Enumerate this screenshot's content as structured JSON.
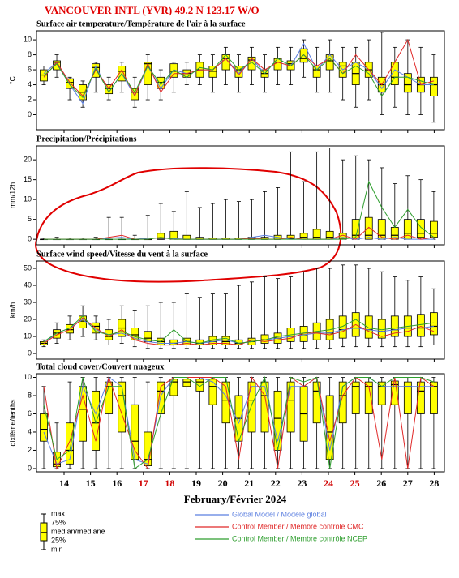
{
  "header": {
    "title": "VANCOUVER INTL (YVR) 49.2 N  123.17 W/O"
  },
  "x_axis": {
    "label": "February/Février 2024",
    "ticks": [
      14,
      15,
      16,
      17,
      18,
      19,
      20,
      21,
      22,
      23,
      24,
      25,
      26,
      27,
      28
    ],
    "tick_colors": [
      "#000",
      "#000",
      "#000",
      "#d00000",
      "#d00000",
      "#000",
      "#000",
      "#000",
      "#000",
      "#000",
      "#d00000",
      "#d00000",
      "#000",
      "#000",
      "#000"
    ]
  },
  "models": [
    {
      "name": "Global Model / Modèle global",
      "color": "#5b7fe0"
    },
    {
      "name": "Control Member / Membre contrôle CMC",
      "color": "#e02828"
    },
    {
      "name": "Control Member / Membre contrôle NCEP",
      "color": "#2e9e2e"
    }
  ],
  "box_legend": [
    "max",
    "75%",
    "median/médiane",
    "25%",
    "min"
  ],
  "box_color": "#ffff00",
  "chart_data": [
    {
      "type": "box",
      "title": "Surface air temperature/Température de l'air à la surface",
      "y_label": "°C",
      "ylim": [
        -2,
        11.2
      ],
      "yticks": [
        0,
        2,
        4,
        6,
        8,
        10
      ],
      "boxes": [
        [
          4,
          4.5,
          5.3,
          6,
          6.5
        ],
        [
          5,
          6,
          7,
          7.2,
          8
        ],
        [
          2,
          3.5,
          4.3,
          4.8,
          5
        ],
        [
          1,
          2,
          3,
          4,
          4.5
        ],
        [
          3,
          5,
          6.3,
          6.8,
          7
        ],
        [
          2,
          2.8,
          3.5,
          4,
          5
        ],
        [
          3,
          4.5,
          5.8,
          6.5,
          7
        ],
        [
          1,
          2,
          3,
          3.5,
          5
        ],
        [
          2,
          4,
          6.8,
          7,
          8
        ],
        [
          2,
          3.5,
          4.3,
          5,
          6
        ],
        [
          3,
          5,
          5.8,
          6.8,
          7
        ],
        [
          4,
          5,
          5.5,
          6,
          7
        ],
        [
          4,
          5,
          6,
          7,
          8
        ],
        [
          3,
          5,
          5.8,
          6.5,
          8
        ],
        [
          4,
          6,
          7.5,
          8,
          9
        ],
        [
          3,
          5,
          6,
          6.5,
          8
        ],
        [
          4,
          6,
          7.3,
          7.7,
          9
        ],
        [
          3,
          5,
          5.5,
          6,
          8
        ],
        [
          4,
          6,
          7,
          7.5,
          9
        ],
        [
          4,
          6,
          6.8,
          7.2,
          9
        ],
        [
          5,
          7,
          7.5,
          8.8,
          10
        ],
        [
          3,
          5,
          6,
          6.5,
          9
        ],
        [
          3,
          6,
          7.2,
          8,
          10
        ],
        [
          2,
          5,
          6.5,
          7,
          9
        ],
        [
          1,
          4,
          5.5,
          7,
          9
        ],
        [
          2,
          5,
          6,
          7,
          10
        ],
        [
          0,
          3,
          4,
          5,
          11
        ],
        [
          1,
          4,
          5,
          7,
          9
        ],
        [
          0,
          3,
          4,
          5.5,
          10
        ],
        [
          0,
          3,
          4,
          5,
          9
        ],
        [
          -1,
          2.5,
          4,
          5,
          8
        ]
      ],
      "lines": [
        [
          5.5,
          7,
          4,
          1.5,
          6.5,
          3,
          5.5,
          2.5,
          6.5,
          3.5,
          6,
          5.5,
          6,
          6,
          7.5,
          5.5,
          7.5,
          5.5,
          7.5,
          6.5,
          9.5,
          6,
          8,
          6,
          7,
          6,
          3.5,
          6,
          5,
          4,
          4
        ],
        [
          5,
          7,
          4.3,
          2.5,
          6,
          3.5,
          6,
          2.5,
          6.8,
          3,
          5.5,
          5.5,
          6,
          6,
          7.5,
          5.3,
          7.5,
          6,
          7,
          6.5,
          8,
          6.5,
          7.5,
          5.5,
          8,
          6,
          4,
          7,
          10,
          4,
          4.5
        ],
        [
          5.2,
          6.8,
          4,
          2.3,
          6.2,
          3,
          5.5,
          3,
          6.5,
          4,
          6,
          5,
          6.3,
          6,
          8,
          6,
          7,
          5.5,
          7.5,
          6.5,
          8,
          6,
          7.5,
          5.5,
          6.5,
          5.5,
          2.5,
          5,
          5,
          4.5,
          4
        ]
      ]
    },
    {
      "type": "box",
      "title": "Precipitation/Précipitations",
      "y_label": "mm/12h",
      "ylim": [
        -1.4,
        23.5
      ],
      "yticks": [
        0,
        5,
        10,
        15,
        20
      ],
      "boxes": [
        [
          0,
          0,
          0,
          0,
          0.3
        ],
        [
          0,
          0,
          0,
          0,
          0.5
        ],
        [
          0,
          0,
          0,
          0,
          0.3
        ],
        [
          0,
          0,
          0,
          0,
          0.3
        ],
        [
          0,
          0,
          0,
          0,
          0.5
        ],
        [
          0,
          0,
          0,
          0,
          5.5
        ],
        [
          0,
          0,
          0,
          0,
          5.5
        ],
        [
          0,
          0,
          0,
          0,
          1
        ],
        [
          0,
          0,
          0,
          0,
          6
        ],
        [
          0,
          0,
          0,
          1.5,
          9
        ],
        [
          0,
          0,
          0.3,
          2,
          7
        ],
        [
          0,
          0,
          0,
          1,
          12
        ],
        [
          0,
          0,
          0,
          0.5,
          8
        ],
        [
          0,
          0,
          0,
          0.3,
          9
        ],
        [
          0,
          0,
          0,
          0.3,
          10
        ],
        [
          0,
          0,
          0,
          0.3,
          9.5
        ],
        [
          0,
          0,
          0,
          0.5,
          10
        ],
        [
          0,
          0,
          0,
          0.5,
          12
        ],
        [
          0,
          0,
          0,
          1,
          13
        ],
        [
          0,
          0,
          0.2,
          1,
          22
        ],
        [
          0,
          0,
          0.5,
          1.5,
          14.5
        ],
        [
          0,
          0,
          0.5,
          2.5,
          22
        ],
        [
          0,
          0,
          0.5,
          2,
          23
        ],
        [
          0,
          0,
          0.3,
          1.5,
          20
        ],
        [
          0,
          0,
          1,
          5,
          21
        ],
        [
          0,
          0,
          1,
          5.5,
          20
        ],
        [
          0,
          0,
          1,
          5,
          18
        ],
        [
          0,
          0,
          1,
          3,
          14
        ],
        [
          0,
          0,
          1.5,
          5,
          16
        ],
        [
          0,
          0.5,
          1.5,
          5,
          15
        ],
        [
          0,
          0.5,
          1.5,
          4.5,
          12
        ]
      ],
      "lines": [
        [
          0,
          0,
          0,
          0,
          0,
          0.3,
          0.5,
          0,
          0.3,
          0.3,
          0.2,
          0,
          0,
          0,
          0,
          0,
          0.5,
          1,
          0.5,
          0,
          0,
          0,
          0,
          0.5,
          0,
          0.5,
          0,
          0.5,
          0,
          0,
          0
        ],
        [
          0,
          0,
          0,
          0,
          0,
          0.5,
          1,
          0,
          0,
          0.5,
          0,
          0,
          0,
          0,
          0,
          0,
          0.3,
          0,
          0,
          0.5,
          0,
          0,
          0,
          1,
          0,
          3,
          0.5,
          0,
          1,
          0,
          0.5
        ],
        [
          0,
          0,
          0,
          0,
          0,
          0,
          0,
          0,
          0,
          0.5,
          0,
          0,
          0,
          0,
          0,
          0,
          0,
          0,
          0,
          0,
          0,
          0,
          0,
          0,
          0.5,
          14.5,
          8,
          3,
          7.5,
          3,
          0.5
        ]
      ]
    },
    {
      "type": "box",
      "title": "Surface wind speed/Vitesse du vent à la surface",
      "y_label": "km/h",
      "ylim": [
        -3.3,
        54.3
      ],
      "yticks": [
        0,
        10,
        20,
        30,
        40,
        50
      ],
      "boxes": [
        [
          4,
          5,
          6,
          7,
          8
        ],
        [
          6,
          9,
          12,
          14,
          18
        ],
        [
          8,
          12,
          14,
          17,
          22
        ],
        [
          10,
          15,
          19,
          22,
          28
        ],
        [
          8,
          12,
          16,
          18,
          22
        ],
        [
          5,
          8,
          10,
          14,
          20
        ],
        [
          6,
          10,
          15,
          20,
          28
        ],
        [
          4,
          8,
          11,
          15,
          25
        ],
        [
          3,
          7,
          9,
          13,
          28
        ],
        [
          3,
          5,
          7,
          9,
          30
        ],
        [
          3,
          5,
          6,
          8,
          30
        ],
        [
          3,
          5,
          7,
          9,
          35
        ],
        [
          3,
          5,
          6,
          8,
          33
        ],
        [
          3,
          5,
          7,
          10,
          35
        ],
        [
          3,
          5,
          7,
          10,
          35
        ],
        [
          3,
          5,
          6,
          8,
          40
        ],
        [
          3,
          5,
          7,
          9,
          42
        ],
        [
          3,
          6,
          8,
          11,
          45
        ],
        [
          3,
          6,
          9,
          12,
          44
        ],
        [
          3,
          7,
          10,
          15,
          45
        ],
        [
          3,
          7,
          11,
          16,
          48
        ],
        [
          3,
          8,
          12,
          18,
          50
        ],
        [
          3,
          8,
          12,
          20,
          50
        ],
        [
          4,
          9,
          14,
          22,
          52
        ],
        [
          4,
          10,
          15,
          24,
          52
        ],
        [
          4,
          9,
          14,
          22,
          50
        ],
        [
          4,
          9,
          13,
          20,
          48
        ],
        [
          4,
          10,
          14,
          22,
          45
        ],
        [
          4,
          10,
          15,
          22,
          43
        ],
        [
          4,
          10,
          15,
          23,
          45
        ],
        [
          5,
          11,
          16,
          24,
          38
        ]
      ],
      "lines": [
        [
          6,
          12,
          15,
          20,
          14,
          11,
          12,
          9,
          7,
          6,
          6,
          7,
          6,
          7,
          8,
          6,
          7,
          8,
          9,
          10,
          11,
          12,
          12,
          14,
          15,
          14,
          13,
          14,
          15,
          15,
          16
        ],
        [
          6,
          11,
          14,
          21,
          15,
          10,
          14,
          8,
          6,
          5,
          5,
          6,
          5,
          6,
          6,
          5,
          8,
          7,
          8,
          9,
          12,
          12,
          11,
          13,
          17,
          13,
          10,
          12,
          13,
          16,
          13
        ],
        [
          7,
          12,
          15,
          22,
          13,
          11,
          13,
          10,
          8,
          7,
          14,
          7,
          6,
          8,
          9,
          6,
          7,
          8,
          10,
          11,
          12,
          13,
          14,
          16,
          20,
          15,
          14,
          15,
          16,
          17,
          18
        ]
      ]
    },
    {
      "type": "box",
      "title": "Total cloud cover/Couvert nuageux",
      "y_label": "dixième/tenths",
      "ylim": [
        -0.36,
        10.4
      ],
      "yticks": [
        0,
        2,
        4,
        6,
        8,
        10
      ],
      "boxes": [
        [
          0,
          3,
          4.3,
          6,
          9
        ],
        [
          0,
          0.2,
          0.5,
          1.8,
          5
        ],
        [
          0,
          0.5,
          2,
          5,
          9.5
        ],
        [
          0,
          3,
          6.5,
          9,
          10
        ],
        [
          0,
          2,
          5,
          8.5,
          10
        ],
        [
          0,
          6,
          9,
          9.5,
          10
        ],
        [
          0,
          4,
          8,
          9.5,
          10
        ],
        [
          0,
          1,
          3,
          7,
          10
        ],
        [
          0,
          0.3,
          1,
          4,
          9.5
        ],
        [
          0,
          6,
          8.5,
          9.5,
          10
        ],
        [
          0,
          8,
          9.5,
          9.8,
          10
        ],
        [
          0,
          9,
          9.5,
          9.8,
          10
        ],
        [
          0,
          8.5,
          9.5,
          9.8,
          10
        ],
        [
          0,
          7,
          9,
          9.8,
          10
        ],
        [
          0,
          5,
          7.5,
          9.5,
          10
        ],
        [
          0,
          3,
          5.5,
          8,
          10
        ],
        [
          0,
          4,
          7.5,
          9.5,
          10
        ],
        [
          0,
          4,
          8,
          9.5,
          10
        ],
        [
          0,
          2,
          5.5,
          8.5,
          10
        ],
        [
          0,
          4,
          7.5,
          9.5,
          10
        ],
        [
          0,
          3,
          6,
          9,
          10
        ],
        [
          0,
          5,
          8.5,
          9.5,
          10
        ],
        [
          0,
          1,
          4,
          8,
          10
        ],
        [
          0,
          5,
          8,
          9.5,
          10
        ],
        [
          0,
          6,
          9,
          9.5,
          10
        ],
        [
          0,
          6,
          9,
          9.5,
          10
        ],
        [
          0,
          7,
          9,
          9.5,
          10
        ],
        [
          0,
          7,
          9.2,
          9.6,
          10
        ],
        [
          0,
          6,
          9,
          9.5,
          10
        ],
        [
          0,
          6,
          8.5,
          9.5,
          10
        ],
        [
          0,
          6,
          9,
          9.5,
          10
        ]
      ],
      "lines": [
        [
          4,
          0.5,
          1,
          9,
          6,
          10,
          9,
          1,
          0.5,
          8,
          10,
          10,
          10,
          9.5,
          8,
          5,
          9,
          9,
          3,
          9,
          9,
          10,
          2,
          9,
          10,
          10,
          9,
          9,
          9,
          9,
          9
        ],
        [
          9,
          0,
          3,
          8,
          3,
          10,
          6,
          2,
          0,
          9,
          10,
          10,
          10,
          10,
          9,
          1,
          10,
          8,
          0,
          10,
          9,
          10,
          3,
          8,
          10,
          9,
          1,
          10,
          0,
          10,
          9
        ],
        [
          7,
          1,
          2,
          10,
          5,
          9,
          9,
          0,
          1,
          6,
          10,
          10,
          9,
          10,
          10,
          3,
          7,
          10,
          2,
          10,
          9.5,
          10,
          0,
          9,
          10,
          10,
          9,
          10,
          10,
          10,
          9.5
        ]
      ]
    }
  ]
}
